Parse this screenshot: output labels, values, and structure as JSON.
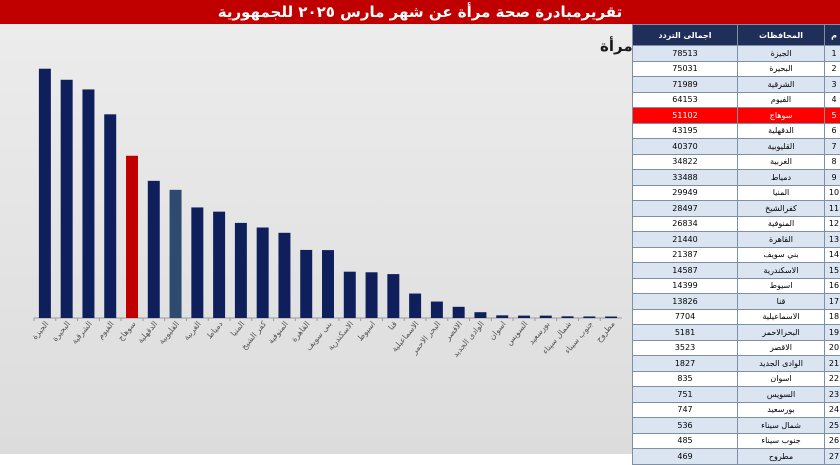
{
  "banner": {
    "title": "تقريرمبادرة صحة مرأة عن شهر مارس ٢٠٢٥  للجمهورية"
  },
  "table": {
    "headers": [
      "م",
      "المحافظات",
      "اجمالى التردد"
    ],
    "highlight_color": "#ff0000",
    "header_color": "#1f2f5a",
    "rows": [
      {
        "n": "1",
        "gov": "الجيزة",
        "val": "78513"
      },
      {
        "n": "2",
        "gov": "البحيرة",
        "val": "75031"
      },
      {
        "n": "3",
        "gov": "الشرقية",
        "val": "71989"
      },
      {
        "n": "4",
        "gov": "الفيوم",
        "val": "64153"
      },
      {
        "n": "5",
        "gov": "سوهاج",
        "val": "51102"
      },
      {
        "n": "6",
        "gov": "الدقهلية",
        "val": "43195"
      },
      {
        "n": "7",
        "gov": "القليوبية",
        "val": "40370"
      },
      {
        "n": "8",
        "gov": "الغربية",
        "val": "34822"
      },
      {
        "n": "9",
        "gov": "دمياط",
        "val": "33488"
      },
      {
        "n": "10",
        "gov": "المنيا",
        "val": "29949"
      },
      {
        "n": "11",
        "gov": "كفرالشيخ",
        "val": "28497"
      },
      {
        "n": "12",
        "gov": "المنوفية",
        "val": "26834"
      },
      {
        "n": "13",
        "gov": "القاهرة",
        "val": "21440"
      },
      {
        "n": "14",
        "gov": "بني سويف",
        "val": "21387"
      },
      {
        "n": "15",
        "gov": "الاسكندرية",
        "val": "14587"
      },
      {
        "n": "16",
        "gov": "اسيوط",
        "val": "14399"
      },
      {
        "n": "17",
        "gov": "قنا",
        "val": "13826"
      },
      {
        "n": "18",
        "gov": "الاسماعيلية",
        "val": "7704"
      },
      {
        "n": "19",
        "gov": "البحرالاحمر",
        "val": "5181"
      },
      {
        "n": "20",
        "gov": "الاقصر",
        "val": "3523"
      },
      {
        "n": "21",
        "gov": "الوادى الجديد",
        "val": "1827"
      },
      {
        "n": "22",
        "gov": "اسوان",
        "val": "835"
      },
      {
        "n": "23",
        "gov": "السويس",
        "val": "751"
      },
      {
        "n": "24",
        "gov": "بورسعيد",
        "val": "747"
      },
      {
        "n": "25",
        "gov": "شمال سيناء",
        "val": "536"
      },
      {
        "n": "26",
        "gov": "جنوب سيناء",
        "val": "485"
      },
      {
        "n": "27",
        "gov": "مطروح",
        "val": "469"
      }
    ]
  },
  "chart_data": {
    "type": "bar",
    "title": "ترددات مبادرة صحة مرأة",
    "categories": [
      "الجيزة",
      "البحيرة",
      "الشرقية",
      "الفيوم",
      "سوهاج",
      "الدقهلية",
      "القليوبية",
      "الغربية",
      "دمياط",
      "المنيا",
      "كفر الشيخ",
      "المنوفية",
      "القاهرة",
      "بنى سويف",
      "الاسكندرية",
      "اسيوط",
      "قنا",
      "الاسماعيلية",
      "البحر الاحمر",
      "الاقصر",
      "الوادى الجديد",
      "اسوان",
      "السويس",
      "بورسعيد",
      "شمال سيناء",
      "جنوب سيناء",
      "مطروح"
    ],
    "values": [
      78513,
      75031,
      71989,
      64153,
      51102,
      43195,
      40370,
      34822,
      33488,
      29949,
      28497,
      26834,
      21440,
      21387,
      14587,
      14399,
      13826,
      7704,
      5181,
      3523,
      1827,
      835,
      751,
      747,
      536,
      485,
      469
    ],
    "ylim": [
      0,
      80000
    ],
    "grid": false,
    "legend": "none",
    "bar_color": "#0f1f5c",
    "highlight_color": "#c00000",
    "highlight_index": 4,
    "secondary_color": "#2e4a6f",
    "secondary_index": 6
  }
}
